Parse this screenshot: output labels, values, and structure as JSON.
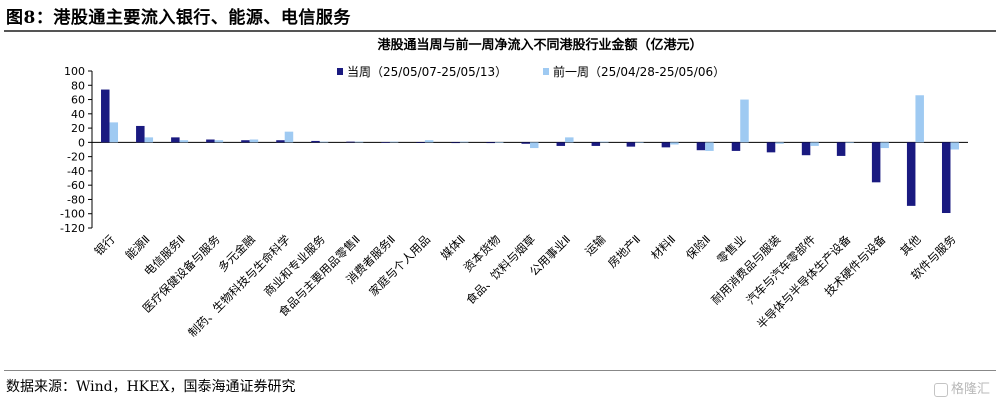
{
  "figure": {
    "title": "图8：港股通主要流入银行、能源、电信服务",
    "source": "数据来源：Wind，HKEX，国泰海通证券研究",
    "watermark": "格隆汇"
  },
  "chart_data": {
    "type": "bar",
    "title": "港股通当周与前一周净流入不同港股行业金额（亿港元）",
    "xlabel": "",
    "ylabel": "",
    "ylim": [
      -120,
      100
    ],
    "yticks": [
      100,
      80,
      60,
      40,
      20,
      0,
      -20,
      -40,
      -60,
      -80,
      -100,
      -120
    ],
    "grid": false,
    "legend_position": "top",
    "categories": [
      "银行",
      "能源Ⅱ",
      "电信服务Ⅱ",
      "医疗保健设备与服务",
      "多元金融",
      "制药、生物科技与生命科学",
      "商业和专业服务",
      "食品与主要用品零售Ⅱ",
      "消费者服务Ⅱ",
      "家庭与个人用品",
      "媒体Ⅱ",
      "资本货物",
      "食品、饮料与烟草",
      "公用事业Ⅱ",
      "运输",
      "房地产Ⅱ",
      "材料Ⅱ",
      "保险Ⅱ",
      "零售业",
      "耐用消费品与服装",
      "汽车与汽车零部件",
      "半导体与半导体生产设备",
      "技术硬件与设备",
      "其他",
      "软件与服务"
    ],
    "series": [
      {
        "name": "当周（25/05/07-25/05/13）",
        "color": "#1a1a80",
        "values": [
          74,
          23,
          7,
          4,
          3,
          3,
          2,
          1,
          0.5,
          0,
          -1,
          -1,
          -2,
          -5,
          -5,
          -6,
          -7,
          -11,
          -12,
          -14,
          -18,
          -19,
          -56,
          -89,
          -99
        ]
      },
      {
        "name": "前一周（25/04/28-25/05/06）",
        "color": "#9fcaf2",
        "values": [
          28,
          7,
          3,
          3,
          4,
          15,
          1,
          1,
          1,
          3,
          1,
          0.5,
          -8,
          7,
          1,
          0,
          -3,
          -12,
          60,
          -2,
          -5,
          -1,
          -8,
          66,
          -10
        ]
      }
    ]
  }
}
